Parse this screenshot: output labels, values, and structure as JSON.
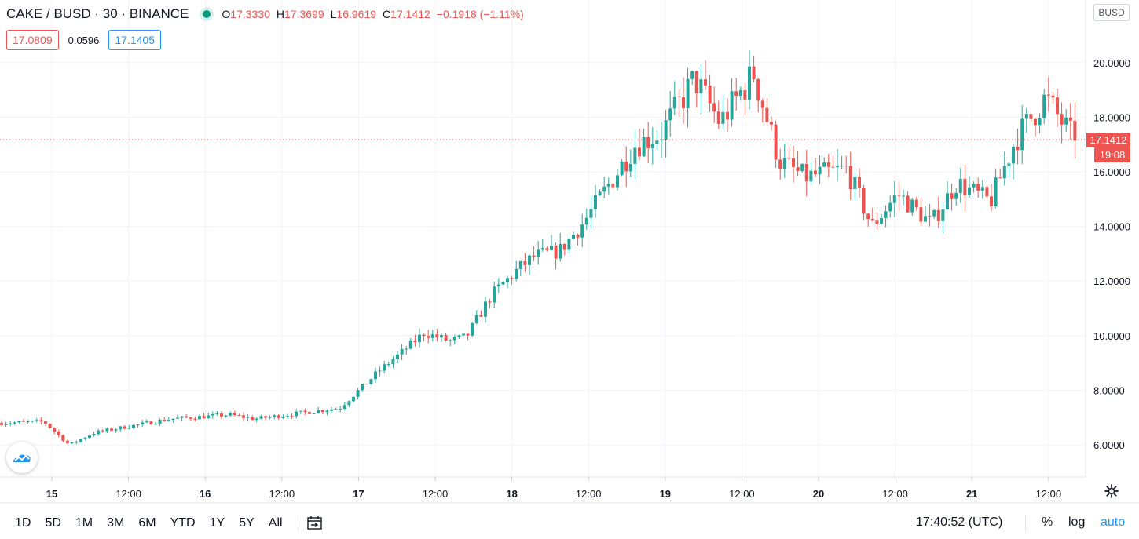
{
  "legend": {
    "symbol": "CAKE / BUSD · 30 · BINANCE",
    "o_label": "O",
    "o": "17.3330",
    "h_label": "H",
    "h": "17.3699",
    "l_label": "L",
    "l": "16.9619",
    "c_label": "C",
    "c": "17.1412",
    "change": "−0.1918 (−1.11%)"
  },
  "quotes": {
    "bid": "17.0809",
    "spread": "0.0596",
    "ask": "17.1405"
  },
  "currency": "BUSD",
  "price_axis": {
    "labels": [
      "20.0000",
      "18.0000",
      "16.0000",
      "14.0000",
      "12.0000",
      "10.0000",
      "8.0000",
      "6.0000"
    ],
    "last_price": "17.1412",
    "countdown": "19:08"
  },
  "time_axis": {
    "labels": [
      "15",
      "12:00",
      "16",
      "12:00",
      "17",
      "12:00",
      "18",
      "12:00",
      "19",
      "12:00",
      "20",
      "12:00",
      "21",
      "12:00"
    ]
  },
  "bottom_bar": {
    "ranges": [
      "1D",
      "5D",
      "1M",
      "3M",
      "6M",
      "YTD",
      "1Y",
      "5Y",
      "All"
    ],
    "clock": "17:40:52 (UTC)",
    "percent": "%",
    "log": "log",
    "auto": "auto"
  },
  "colors": {
    "up": "#26a69a",
    "down": "#ef5350",
    "grid": "#f0f3fa",
    "accent": "#2196f3"
  },
  "icons": {
    "logo": "tradingview-cloud-icon",
    "settings": "gear-icon",
    "goto": "go-to-date-icon",
    "status": "market-open-dot-icon"
  },
  "chart_data": {
    "type": "candlestick",
    "title": "CAKE / BUSD · 30 · BINANCE",
    "xlabel": "",
    "ylabel": "",
    "ylim": [
      5.0,
      21.5
    ],
    "x_ticks": [
      "15",
      "12:00",
      "16",
      "12:00",
      "17",
      "12:00",
      "18",
      "12:00",
      "19",
      "12:00",
      "20",
      "12:00",
      "21",
      "12:00"
    ],
    "y_ticks": [
      6,
      8,
      10,
      12,
      14,
      16,
      18,
      20
    ],
    "last_price": 17.1412,
    "grid": true,
    "close_path": [
      {
        "t": 0,
        "v": 6.8
      },
      {
        "t": 0.5,
        "v": 6.85
      },
      {
        "t": 0.8,
        "v": 6.0
      },
      {
        "t": 1.1,
        "v": 6.45
      },
      {
        "t": 2.0,
        "v": 6.95
      },
      {
        "t": 2.7,
        "v": 7.1
      },
      {
        "t": 3.0,
        "v": 6.95
      },
      {
        "t": 3.5,
        "v": 7.15
      },
      {
        "t": 4.0,
        "v": 7.35
      },
      {
        "t": 4.5,
        "v": 8.8
      },
      {
        "t": 4.7,
        "v": 9.3
      },
      {
        "t": 5.0,
        "v": 10.1
      },
      {
        "t": 5.3,
        "v": 9.8
      },
      {
        "t": 5.5,
        "v": 9.95
      },
      {
        "t": 5.8,
        "v": 11.5
      },
      {
        "t": 6.1,
        "v": 12.4
      },
      {
        "t": 6.3,
        "v": 12.9
      },
      {
        "t": 6.6,
        "v": 13.1
      },
      {
        "t": 6.9,
        "v": 14.2
      },
      {
        "t": 7.5,
        "v": 17.0
      },
      {
        "t": 7.8,
        "v": 17.4
      },
      {
        "t": 8.2,
        "v": 19.4
      },
      {
        "t": 8.5,
        "v": 17.8
      },
      {
        "t": 8.9,
        "v": 19.6
      },
      {
        "t": 9.2,
        "v": 16.4
      },
      {
        "t": 9.5,
        "v": 15.8
      },
      {
        "t": 10.0,
        "v": 16.1
      },
      {
        "t": 10.3,
        "v": 14.0
      },
      {
        "t": 10.6,
        "v": 15.2
      },
      {
        "t": 11.0,
        "v": 14.1
      },
      {
        "t": 11.3,
        "v": 15.6
      },
      {
        "t": 11.7,
        "v": 14.9
      },
      {
        "t": 12.0,
        "v": 17.2
      },
      {
        "t": 12.35,
        "v": 18.7
      },
      {
        "t": 12.7,
        "v": 17.14
      }
    ]
  }
}
